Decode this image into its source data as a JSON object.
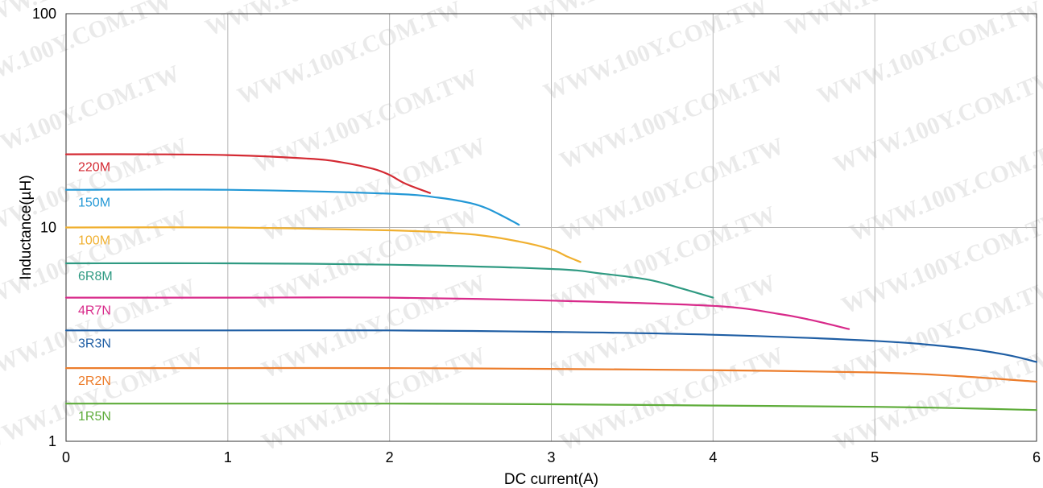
{
  "chart_data": {
    "type": "line",
    "title": "",
    "xlabel": "DC current(A)",
    "ylabel": "Inductance(µH)",
    "xlim": [
      0,
      6
    ],
    "ylim": [
      1,
      100
    ],
    "y_scale": "log",
    "grid": true,
    "x_ticks": [
      "0",
      "1",
      "2",
      "3",
      "4",
      "5",
      "6"
    ],
    "y_ticks": [
      {
        "value": 1,
        "label": "1"
      },
      {
        "value": 10,
        "label": "10"
      },
      {
        "value": 100,
        "label": "100"
      }
    ],
    "series": [
      {
        "name": "220M",
        "color": "#d42a33",
        "x": [
          0,
          0.5,
          1.0,
          1.5,
          1.7,
          1.9,
          2.0,
          2.1,
          2.25
        ],
        "y": [
          22,
          22,
          21.8,
          21,
          20.2,
          18.8,
          17.6,
          16.0,
          14.5
        ]
      },
      {
        "name": "150M",
        "color": "#2398d6",
        "x": [
          0,
          1.0,
          2.0,
          2.3,
          2.5,
          2.6,
          2.7,
          2.8
        ],
        "y": [
          15,
          15,
          14.4,
          13.8,
          13.0,
          12.3,
          11.3,
          10.3
        ]
      },
      {
        "name": "100M",
        "color": "#f0b030",
        "x": [
          0,
          1.0,
          2.0,
          2.5,
          2.8,
          3.0,
          3.1,
          3.18
        ],
        "y": [
          10,
          10,
          9.7,
          9.3,
          8.6,
          7.9,
          7.3,
          6.9
        ]
      },
      {
        "name": "6R8M",
        "color": "#2f9a82",
        "x": [
          0,
          1.0,
          2.0,
          3.0,
          3.3,
          3.6,
          3.8,
          4.0
        ],
        "y": [
          6.8,
          6.8,
          6.7,
          6.4,
          6.1,
          5.7,
          5.2,
          4.7
        ]
      },
      {
        "name": "4R7N",
        "color": "#d82a8a",
        "x": [
          0,
          1.0,
          2.0,
          3.0,
          4.0,
          4.4,
          4.6,
          4.84
        ],
        "y": [
          4.7,
          4.7,
          4.7,
          4.55,
          4.3,
          3.95,
          3.7,
          3.35
        ]
      },
      {
        "name": "3R3N",
        "color": "#1f5ea4",
        "x": [
          0,
          1.0,
          2.0,
          3.0,
          4.0,
          5.0,
          5.5,
          5.8,
          6.0
        ],
        "y": [
          3.3,
          3.3,
          3.3,
          3.25,
          3.15,
          2.95,
          2.75,
          2.55,
          2.35
        ]
      },
      {
        "name": "2R2N",
        "color": "#ec7d2c",
        "x": [
          0,
          1.0,
          2.0,
          3.0,
          4.0,
          5.0,
          5.5,
          6.0
        ],
        "y": [
          2.2,
          2.2,
          2.2,
          2.18,
          2.15,
          2.1,
          2.02,
          1.9
        ]
      },
      {
        "name": "1R5N",
        "color": "#5eac3a",
        "x": [
          0,
          1.0,
          2.0,
          3.0,
          4.0,
          5.0,
          5.5,
          6.0
        ],
        "y": [
          1.5,
          1.5,
          1.5,
          1.49,
          1.47,
          1.45,
          1.43,
          1.4
        ]
      }
    ],
    "watermark": "WWW.100Y.COM.TW"
  }
}
